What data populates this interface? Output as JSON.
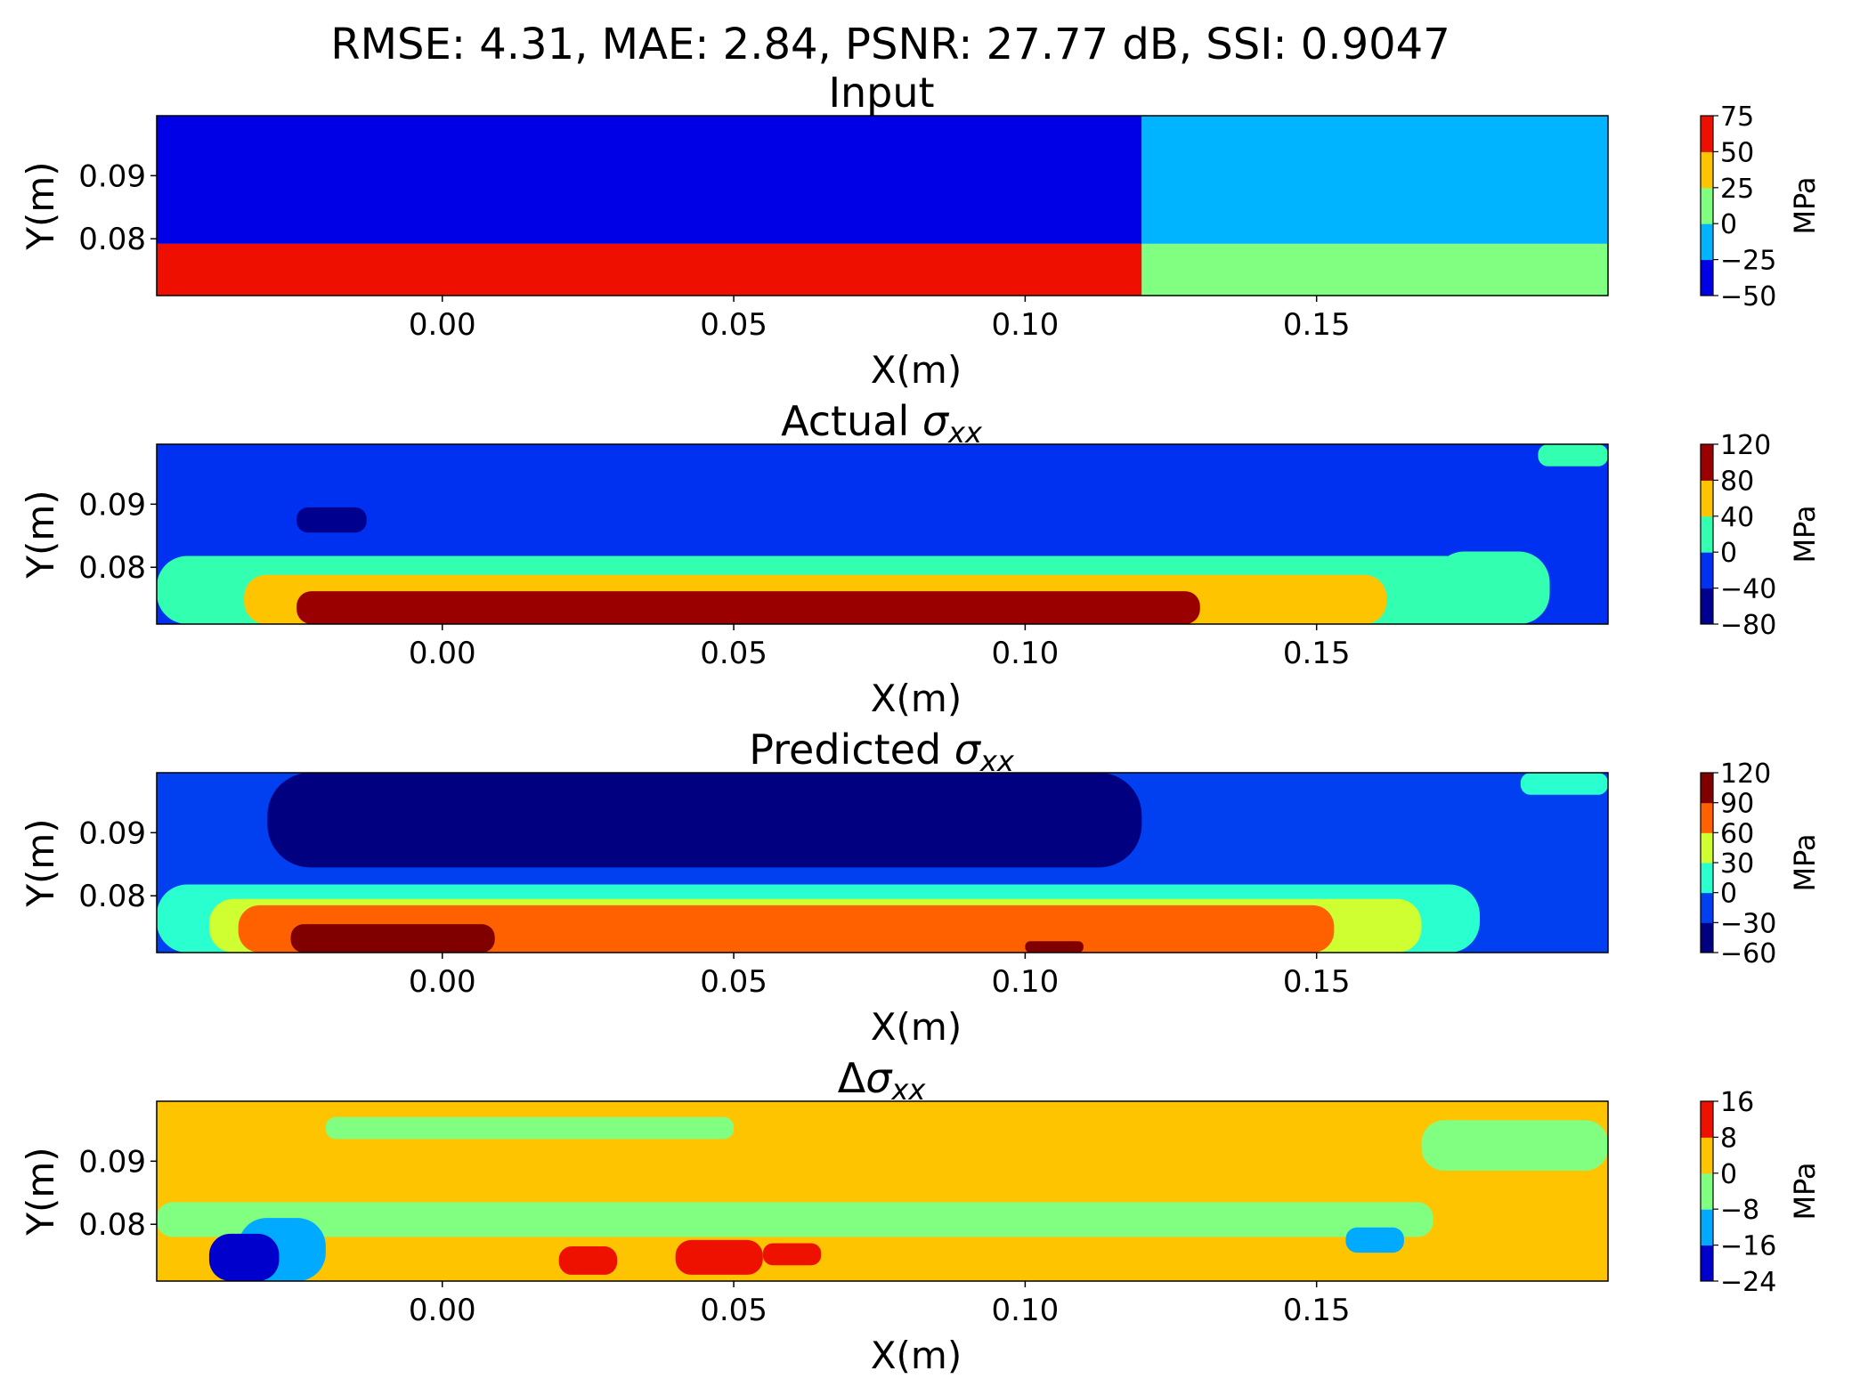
{
  "suptitle": "RMSE: 4.31, MAE: 2.84, PSNR: 27.77 dB, SSI: 0.9047",
  "chart_data": [
    {
      "type": "heatmap",
      "title": "Input",
      "title_main": "Input",
      "title_sub": "",
      "xlabel": "X(m)",
      "ylabel": "Y(m)",
      "xlim": [
        -0.049,
        0.2
      ],
      "ylim": [
        0.071,
        0.0995
      ],
      "xticks": [
        0.0,
        0.05,
        0.1,
        0.15
      ],
      "xtick_labels": [
        "0.00",
        "0.05",
        "0.10",
        "0.15"
      ],
      "yticks": [
        0.08,
        0.09
      ],
      "ytick_labels": [
        "0.08",
        "0.09"
      ],
      "colorbar": {
        "label": "MPa",
        "range": [
          -50,
          75
        ],
        "ticks": [
          -50,
          -25,
          0,
          25,
          50,
          75
        ],
        "tick_labels": [
          "−50",
          "−25",
          "0",
          "25",
          "50",
          "75"
        ],
        "colors": [
          "#0000e6",
          "#00b4ff",
          "#80ff80",
          "#ffc400",
          "#ee0f00"
        ]
      },
      "regions": [
        {
          "x": [
            -0.049,
            0.12
          ],
          "y": [
            0.0792,
            0.0995
          ],
          "value": -45
        },
        {
          "x": [
            0.12,
            0.2
          ],
          "y": [
            0.0792,
            0.0995
          ],
          "value": -10
        },
        {
          "x": [
            -0.049,
            0.12
          ],
          "y": [
            0.071,
            0.0792
          ],
          "value": 70
        },
        {
          "x": [
            0.12,
            0.2
          ],
          "y": [
            0.071,
            0.0792
          ],
          "value": 10
        }
      ]
    },
    {
      "type": "heatmap",
      "title": "Actual σxx",
      "title_main": "Actual ",
      "title_sub": "xx",
      "xlabel": "X(m)",
      "ylabel": "Y(m)",
      "xlim": [
        -0.049,
        0.2
      ],
      "ylim": [
        0.071,
        0.0995
      ],
      "xticks": [
        0.0,
        0.05,
        0.1,
        0.15
      ],
      "xtick_labels": [
        "0.00",
        "0.05",
        "0.10",
        "0.15"
      ],
      "yticks": [
        0.08,
        0.09
      ],
      "ytick_labels": [
        "0.08",
        "0.09"
      ],
      "colorbar": {
        "label": "MPa",
        "range": [
          -80,
          120
        ],
        "ticks": [
          -80,
          -40,
          0,
          40,
          80,
          120
        ],
        "tick_labels": [
          "−80",
          "−40",
          "0",
          "40",
          "80",
          "120"
        ],
        "colors": [
          "#00008f",
          "#0030f0",
          "#33ffb0",
          "#ffc400",
          "#9b0000"
        ]
      },
      "background_value": -20,
      "regions": [
        {
          "x": [
            -0.049,
            0.19
          ],
          "y": [
            0.071,
            0.0818
          ],
          "value": 20
        },
        {
          "x": [
            -0.034,
            0.162
          ],
          "y": [
            0.071,
            0.0788
          ],
          "value": 60
        },
        {
          "x": [
            -0.025,
            0.13
          ],
          "y": [
            0.071,
            0.0762
          ],
          "value": 100
        },
        {
          "x": [
            -0.025,
            -0.013
          ],
          "y": [
            0.0855,
            0.0895
          ],
          "value": -60
        },
        {
          "x": [
            0.17,
            0.19
          ],
          "y": [
            0.0715,
            0.0825
          ],
          "value": 20
        },
        {
          "x": [
            0.188,
            0.2
          ],
          "y": [
            0.096,
            0.0995
          ],
          "value": 20
        }
      ]
    },
    {
      "type": "heatmap",
      "title": "Predicted σxx",
      "title_main": "Predicted ",
      "title_sub": "xx",
      "xlabel": "X(m)",
      "ylabel": "Y(m)",
      "xlim": [
        -0.049,
        0.2
      ],
      "ylim": [
        0.071,
        0.0995
      ],
      "xticks": [
        0.0,
        0.05,
        0.1,
        0.15
      ],
      "xtick_labels": [
        "0.00",
        "0.05",
        "0.10",
        "0.15"
      ],
      "yticks": [
        0.08,
        0.09
      ],
      "ytick_labels": [
        "0.08",
        "0.09"
      ],
      "colorbar": {
        "label": "MPa",
        "range": [
          -60,
          120
        ],
        "ticks": [
          -60,
          -30,
          0,
          30,
          60,
          90,
          120
        ],
        "tick_labels": [
          "−60",
          "−30",
          "0",
          "30",
          "60",
          "90",
          "120"
        ],
        "colors": [
          "#000080",
          "#0040f0",
          "#2affd0",
          "#cfff30",
          "#ff6000",
          "#800000"
        ]
      },
      "background_value": -15,
      "regions": [
        {
          "x": [
            -0.03,
            0.12
          ],
          "y": [
            0.0845,
            0.0995
          ],
          "value": -45
        },
        {
          "x": [
            -0.049,
            0.178
          ],
          "y": [
            0.071,
            0.0818
          ],
          "value": 15
        },
        {
          "x": [
            -0.04,
            0.168
          ],
          "y": [
            0.071,
            0.0795
          ],
          "value": 45
        },
        {
          "x": [
            -0.035,
            0.153
          ],
          "y": [
            0.071,
            0.0785
          ],
          "value": 75
        },
        {
          "x": [
            -0.026,
            0.009
          ],
          "y": [
            0.071,
            0.0755
          ],
          "value": 105
        },
        {
          "x": [
            0.1,
            0.11
          ],
          "y": [
            0.071,
            0.0728
          ],
          "value": 105
        },
        {
          "x": [
            0.185,
            0.2
          ],
          "y": [
            0.096,
            0.0995
          ],
          "value": 15
        }
      ]
    },
    {
      "type": "heatmap",
      "title": "Δσxx",
      "title_main": "",
      "title_sub": "xx",
      "xlabel": "X(m)",
      "ylabel": "Y(m)",
      "xlim": [
        -0.049,
        0.2
      ],
      "ylim": [
        0.071,
        0.0995
      ],
      "xticks": [
        0.0,
        0.05,
        0.1,
        0.15
      ],
      "xtick_labels": [
        "0.00",
        "0.05",
        "0.10",
        "0.15"
      ],
      "yticks": [
        0.08,
        0.09
      ],
      "ytick_labels": [
        "0.08",
        "0.09"
      ],
      "colorbar": {
        "label": "MPa",
        "range": [
          -24,
          16
        ],
        "ticks": [
          -24,
          -16,
          -8,
          0,
          8,
          16
        ],
        "tick_labels": [
          "−24",
          "−16",
          "−8",
          "0",
          "8",
          "16"
        ],
        "colors": [
          "#0000cc",
          "#00aaff",
          "#80ff80",
          "#ffc400",
          "#ee1100"
        ]
      },
      "background_value": 4,
      "regions": [
        {
          "x": [
            -0.02,
            0.05
          ],
          "y": [
            0.0935,
            0.097
          ],
          "value": -4
        },
        {
          "x": [
            0.168,
            0.2
          ],
          "y": [
            0.0885,
            0.0965
          ],
          "value": -4
        },
        {
          "x": [
            -0.049,
            0.17
          ],
          "y": [
            0.078,
            0.0835
          ],
          "value": -4
        },
        {
          "x": [
            -0.035,
            -0.02
          ],
          "y": [
            0.071,
            0.081
          ],
          "value": -12
        },
        {
          "x": [
            -0.04,
            -0.028
          ],
          "y": [
            0.071,
            0.0785
          ],
          "value": -20
        },
        {
          "x": [
            0.155,
            0.165
          ],
          "y": [
            0.0755,
            0.0795
          ],
          "value": -12
        },
        {
          "x": [
            0.02,
            0.03
          ],
          "y": [
            0.072,
            0.0765
          ],
          "value": 12
        },
        {
          "x": [
            0.04,
            0.055
          ],
          "y": [
            0.072,
            0.0775
          ],
          "value": 12
        },
        {
          "x": [
            0.055,
            0.065
          ],
          "y": [
            0.0735,
            0.077
          ],
          "value": 12
        }
      ]
    }
  ]
}
